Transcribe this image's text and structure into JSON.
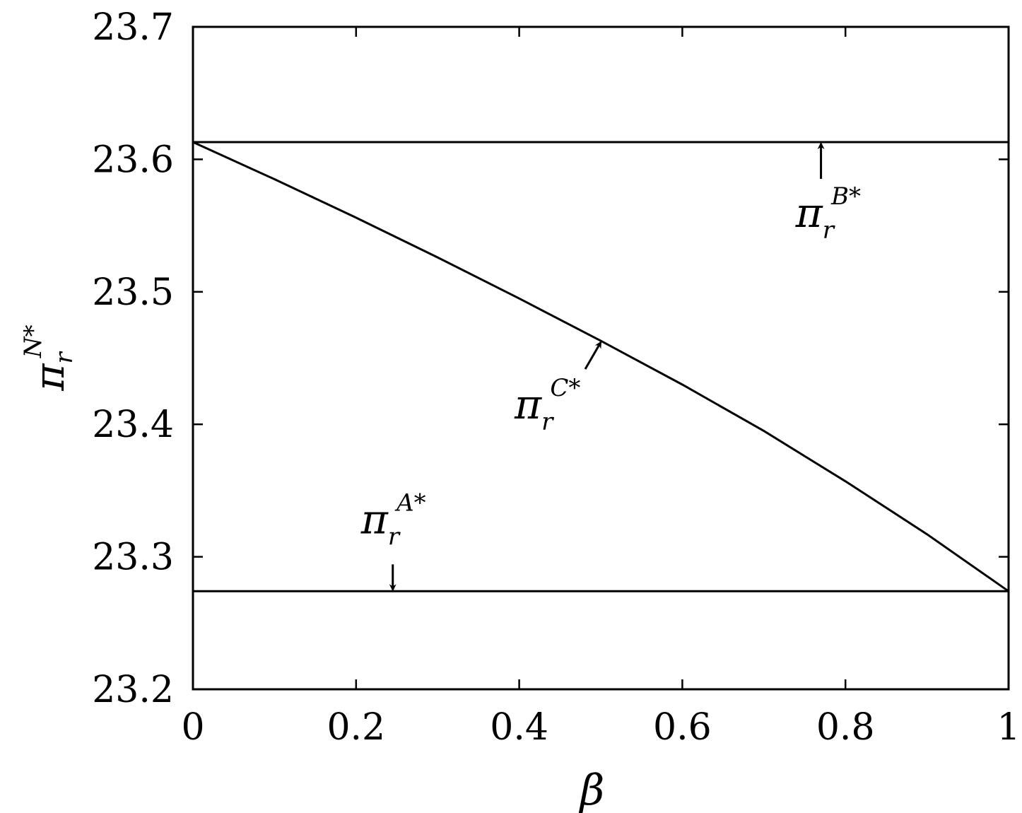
{
  "chart_data": {
    "type": "line",
    "xlabel": "β",
    "ylabel": {
      "base": "π",
      "sub": "r",
      "sup": "N*"
    },
    "xlim": [
      0,
      1
    ],
    "ylim": [
      23.2,
      23.7
    ],
    "xticks": [
      0,
      0.2,
      0.4,
      0.6,
      0.8,
      1
    ],
    "xtick_labels": [
      "0",
      "0.2",
      "0.4",
      "0.6",
      "0.8",
      "1"
    ],
    "yticks": [
      23.2,
      23.3,
      23.4,
      23.5,
      23.6,
      23.7
    ],
    "ytick_labels": [
      "23.2",
      "23.3",
      "23.4",
      "23.5",
      "23.6",
      "23.7"
    ],
    "grid": false,
    "series": [
      {
        "x": [
          0,
          0.1,
          0.2,
          0.3,
          0.4,
          0.5,
          0.6,
          0.7,
          0.8,
          0.9,
          1.0
        ],
        "y": [
          23.613,
          23.585,
          23.556,
          23.526,
          23.495,
          23.463,
          23.43,
          23.395,
          23.357,
          23.317,
          23.274
        ]
      },
      {
        "x": [
          0,
          1
        ],
        "y": [
          23.613,
          23.613
        ]
      },
      {
        "x": [
          0,
          1
        ],
        "y": [
          23.274,
          23.274
        ]
      }
    ],
    "annotations": [
      {
        "base": "π",
        "sub": "r",
        "sup": "B*",
        "arrow_x": 0.77,
        "arrow_y": 23.613
      },
      {
        "base": "π",
        "sub": "r",
        "sup": "C*",
        "arrow_x": 0.5,
        "arrow_y": 23.463
      },
      {
        "base": "π",
        "sub": "r",
        "sup": "A*",
        "arrow_x": 0.245,
        "arrow_y": 23.274
      }
    ]
  }
}
